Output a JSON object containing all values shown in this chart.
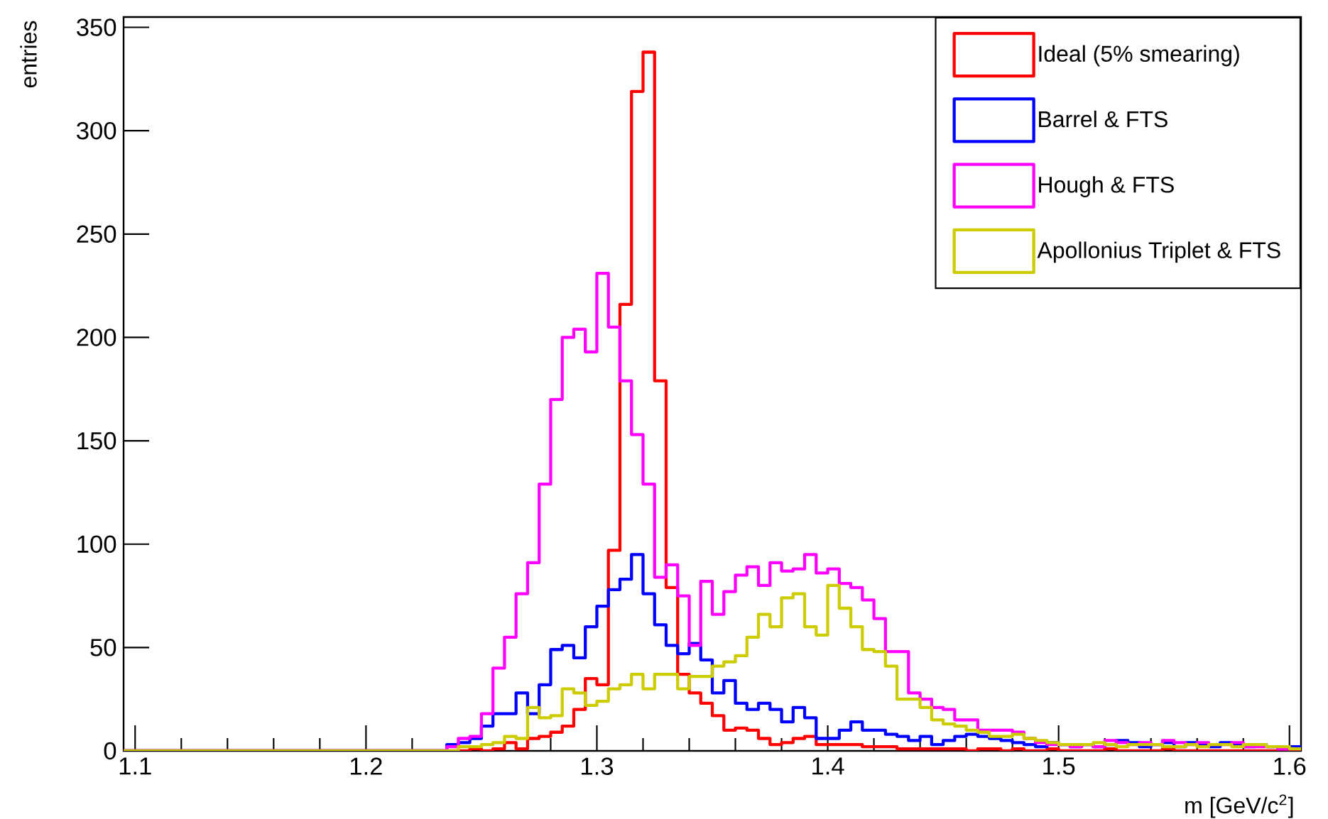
{
  "chart_data": {
    "type": "histogram",
    "xlabel": "m [GeV/c$^{2}$]",
    "ylabel": "entries",
    "bins": [
      1.095,
      1.1,
      1.105,
      1.11,
      1.115,
      1.12,
      1.125,
      1.13,
      1.135,
      1.14,
      1.145,
      1.15,
      1.155,
      1.16,
      1.165,
      1.17,
      1.175,
      1.18,
      1.185,
      1.19,
      1.195,
      1.2,
      1.205,
      1.21,
      1.215,
      1.22,
      1.225,
      1.23,
      1.235,
      1.24,
      1.245,
      1.25,
      1.255,
      1.26,
      1.265,
      1.27,
      1.275,
      1.28,
      1.285,
      1.29,
      1.295,
      1.3,
      1.305,
      1.31,
      1.315,
      1.32,
      1.325,
      1.33,
      1.335,
      1.34,
      1.345,
      1.35,
      1.355,
      1.36,
      1.365,
      1.37,
      1.375,
      1.38,
      1.385,
      1.39,
      1.395,
      1.4,
      1.405,
      1.41,
      1.415,
      1.42,
      1.425,
      1.43,
      1.435,
      1.44,
      1.445,
      1.45,
      1.455,
      1.46,
      1.465,
      1.47,
      1.475,
      1.48,
      1.485,
      1.49,
      1.495,
      1.5,
      1.505,
      1.51,
      1.515,
      1.52,
      1.525,
      1.53,
      1.535,
      1.54,
      1.545,
      1.55,
      1.555,
      1.56,
      1.565,
      1.57,
      1.575,
      1.58,
      1.585,
      1.59,
      1.595,
      1.6,
      1.605
    ],
    "series": [
      {
        "name": "Ideal (5% smearing)",
        "color": "#ff0000",
        "values": [
          0,
          0,
          0,
          0,
          0,
          0,
          0,
          0,
          0,
          0,
          0,
          0,
          0,
          0,
          0,
          0,
          0,
          0,
          0,
          0,
          0,
          0,
          0,
          0,
          0,
          0,
          0,
          0,
          0,
          0,
          1,
          0,
          1,
          4,
          1,
          6,
          7,
          9,
          12,
          20,
          35,
          32,
          97,
          216,
          319,
          338,
          179,
          79,
          37,
          28,
          23,
          17,
          10,
          11,
          10,
          6,
          3,
          4,
          6,
          7,
          3,
          3,
          3,
          3,
          2,
          2,
          2,
          1,
          1,
          1,
          1,
          1,
          1,
          0,
          1,
          1,
          0,
          1,
          0,
          0,
          1,
          0,
          0,
          0,
          0,
          1,
          0,
          0,
          0,
          0,
          1,
          0,
          0,
          0,
          0,
          0,
          0,
          0,
          0,
          0,
          0,
          0
        ]
      },
      {
        "name": "Barrel & FTS",
        "color": "#0000ff",
        "values": [
          0,
          0,
          0,
          0,
          0,
          0,
          0,
          0,
          0,
          0,
          0,
          0,
          0,
          0,
          0,
          0,
          0,
          0,
          0,
          0,
          0,
          0,
          0,
          0,
          0,
          0,
          0,
          0,
          3,
          4,
          6,
          12,
          18,
          18,
          28,
          18,
          32,
          49,
          51,
          45,
          60,
          70,
          78,
          83,
          95,
          76,
          61,
          51,
          47,
          52,
          44,
          28,
          34,
          23,
          20,
          23,
          20,
          14,
          21,
          16,
          6,
          6,
          10,
          14,
          10,
          10,
          8,
          7,
          5,
          7,
          3,
          5,
          7,
          8,
          7,
          6,
          5,
          4,
          3,
          2,
          4,
          3,
          2,
          3,
          2,
          3,
          5,
          4,
          2,
          3,
          4,
          2,
          4,
          3,
          2,
          4,
          3,
          2,
          3,
          2,
          1,
          2
        ]
      },
      {
        "name": "Hough & FTS",
        "color": "#ff00ff",
        "values": [
          0,
          0,
          0,
          0,
          0,
          0,
          0,
          0,
          0,
          0,
          0,
          0,
          0,
          0,
          0,
          0,
          0,
          0,
          0,
          0,
          0,
          0,
          0,
          0,
          0,
          0,
          0,
          0,
          2,
          6,
          7,
          18,
          40,
          55,
          76,
          91,
          129,
          170,
          200,
          204,
          193,
          231,
          205,
          179,
          153,
          129,
          84,
          90,
          75,
          51,
          82,
          66,
          77,
          85,
          89,
          80,
          91,
          87,
          88,
          95,
          86,
          88,
          81,
          79,
          73,
          64,
          48,
          48,
          28,
          25,
          21,
          20,
          15,
          15,
          10,
          10,
          10,
          9,
          6,
          4,
          3,
          3,
          2,
          3,
          2,
          5,
          4,
          3,
          4,
          3,
          5,
          4,
          3,
          4,
          3,
          3,
          4,
          2,
          2,
          2,
          1,
          1
        ]
      },
      {
        "name": "Apollonius Triplet & FTS",
        "color": "#cccc00",
        "values": [
          0,
          0,
          0,
          0,
          0,
          0,
          0,
          0,
          0,
          0,
          0,
          0,
          0,
          0,
          0,
          0,
          0,
          0,
          0,
          0,
          0,
          0,
          0,
          0,
          0,
          0,
          0,
          0,
          0,
          2,
          2,
          3,
          4,
          7,
          6,
          21,
          16,
          17,
          30,
          28,
          22,
          24,
          30,
          32,
          37,
          30,
          37,
          37,
          30,
          36,
          36,
          41,
          43,
          46,
          55,
          66,
          60,
          74,
          76,
          60,
          56,
          80,
          69,
          60,
          49,
          48,
          41,
          25,
          25,
          21,
          15,
          13,
          12,
          10,
          9,
          7,
          7,
          8,
          6,
          5,
          4,
          3,
          3,
          3,
          4,
          3,
          2,
          3,
          3,
          3,
          2,
          2,
          3,
          2,
          3,
          3,
          2,
          3,
          3,
          2,
          2,
          1
        ]
      }
    ],
    "xlim": [
      1.095,
      1.605
    ],
    "ylim": [
      0,
      355
    ],
    "xticks": [
      1.1,
      1.2,
      1.3,
      1.4,
      1.5,
      1.6
    ],
    "yticks": [
      0,
      50,
      100,
      150,
      200,
      250,
      300,
      350
    ],
    "legend": "top right"
  }
}
